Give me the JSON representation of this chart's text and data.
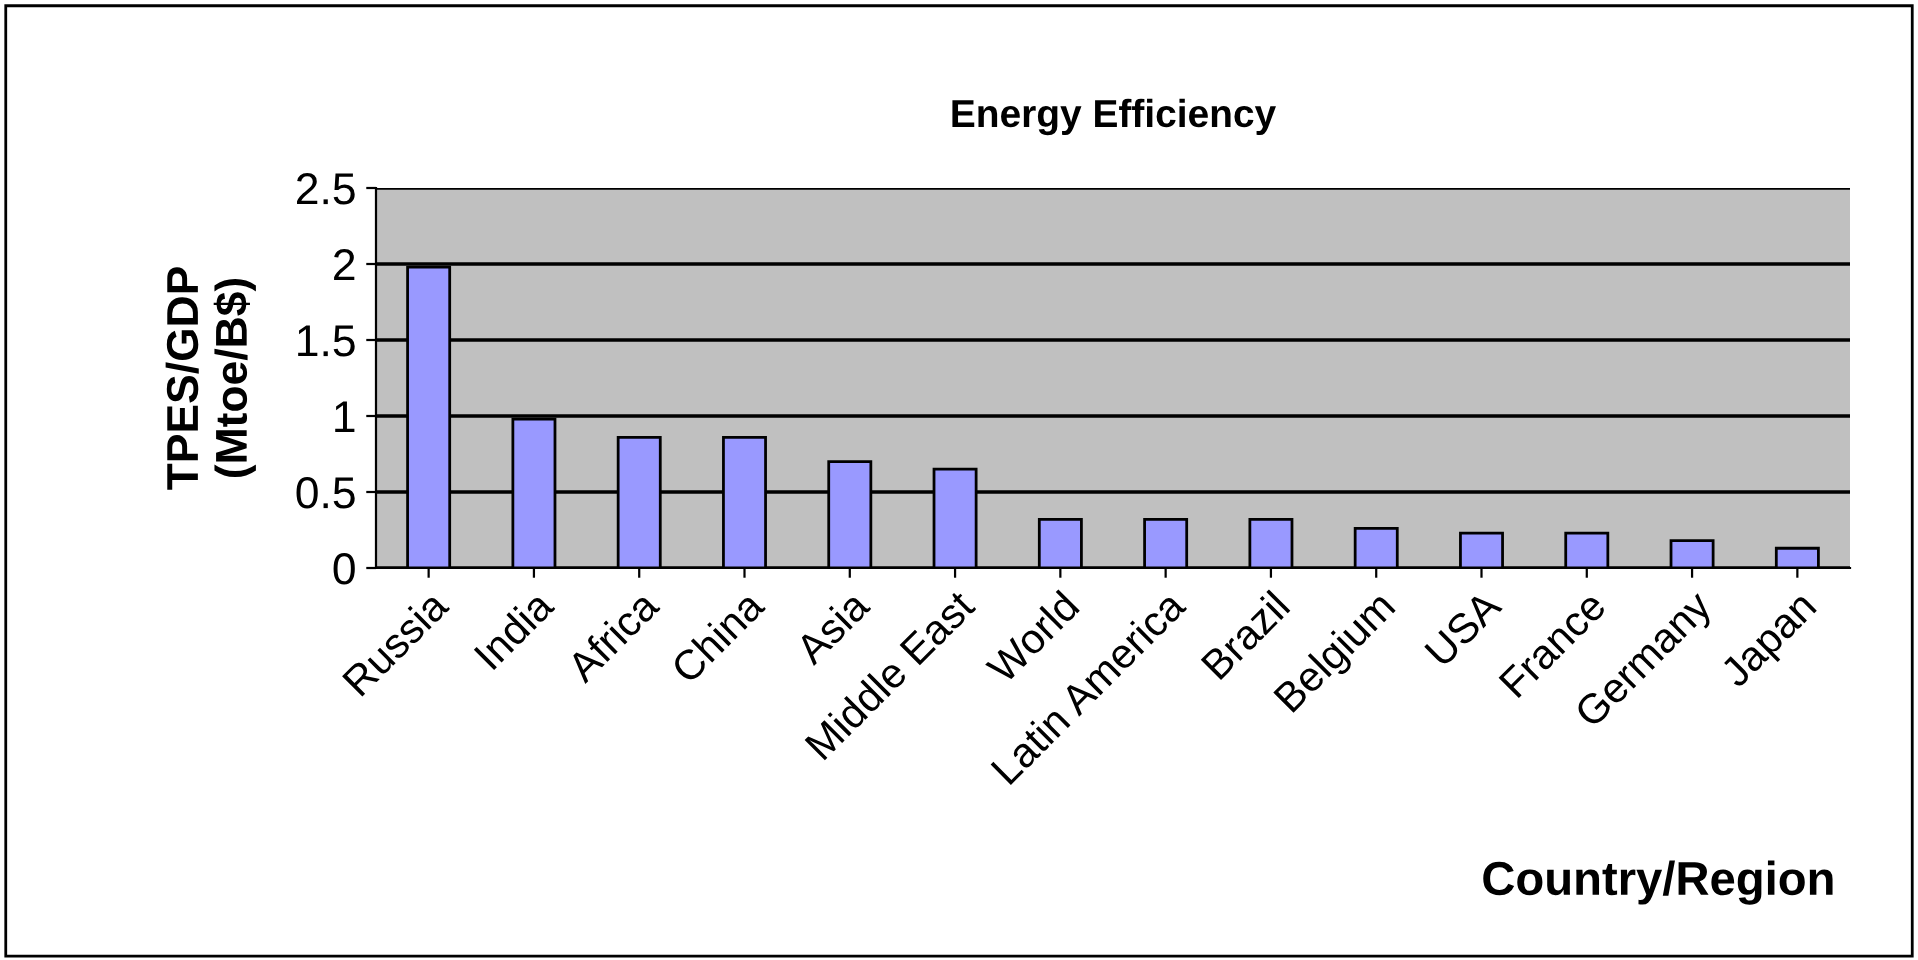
{
  "chart_data": {
    "type": "bar",
    "title": "Energy Efficiency",
    "xlabel": "Country/Region",
    "ylabel": "TPES/GDP\n(Mtoe/B$)",
    "categories": [
      "Russia",
      "India",
      "Africa",
      "China",
      "Asia",
      "Middle East",
      "World",
      "Latin America",
      "Brazil",
      "Belgium",
      "USA",
      "France",
      "Germany",
      "Japan"
    ],
    "values": [
      1.98,
      0.98,
      0.86,
      0.86,
      0.7,
      0.65,
      0.32,
      0.32,
      0.32,
      0.26,
      0.23,
      0.23,
      0.18,
      0.13
    ],
    "color": "#9999ff",
    "ylim": [
      0,
      2.5
    ],
    "yticks": [
      0,
      0.5,
      1,
      1.5,
      2,
      2.5
    ],
    "grid": "y"
  }
}
